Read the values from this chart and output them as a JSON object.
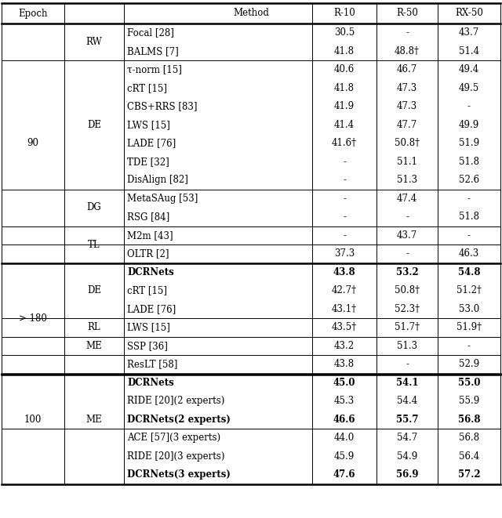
{
  "rows": [
    {
      "epoch": "",
      "group": "",
      "method": "Focal [28]",
      "r10": "30.5",
      "r50": "-",
      "rx50": "43.7",
      "bold": false,
      "tau": false
    },
    {
      "epoch": "",
      "group": "RW",
      "method": "BALMS [7]",
      "r10": "41.8",
      "r50": "48.8†",
      "rx50": "51.4",
      "bold": false,
      "tau": false
    },
    {
      "epoch": "",
      "group": "",
      "method": "τ-norm [15]",
      "r10": "40.6",
      "r50": "46.7",
      "rx50": "49.4",
      "bold": false,
      "tau": true
    },
    {
      "epoch": "",
      "group": "",
      "method": "cRT [15]",
      "r10": "41.8",
      "r50": "47.3",
      "rx50": "49.5",
      "bold": false,
      "tau": false
    },
    {
      "epoch": "",
      "group": "",
      "method": "CBS+RRS [83]",
      "r10": "41.9",
      "r50": "47.3",
      "rx50": "-",
      "bold": false,
      "tau": false
    },
    {
      "epoch": "90",
      "group": "DE",
      "method": "LWS [15]",
      "r10": "41.4",
      "r50": "47.7",
      "rx50": "49.9",
      "bold": false,
      "tau": false
    },
    {
      "epoch": "",
      "group": "",
      "method": "LADE [76]",
      "r10": "41.6†",
      "r50": "50.8†",
      "rx50": "51.9",
      "bold": false,
      "tau": false
    },
    {
      "epoch": "",
      "group": "",
      "method": "TDE [32]",
      "r10": "-",
      "r50": "51.1",
      "rx50": "51.8",
      "bold": false,
      "tau": false
    },
    {
      "epoch": "",
      "group": "",
      "method": "DisAlign [82]",
      "r10": "-",
      "r50": "51.3",
      "rx50": "52.6",
      "bold": false,
      "tau": false
    },
    {
      "epoch": "",
      "group": "DG",
      "method": "MetaSAug [53]",
      "r10": "-",
      "r50": "47.4",
      "rx50": "-",
      "bold": false,
      "tau": false
    },
    {
      "epoch": "",
      "group": "",
      "method": "RSG [84]",
      "r10": "-",
      "r50": "-",
      "rx50": "51.8",
      "bold": false,
      "tau": false
    },
    {
      "epoch": "",
      "group": "TL",
      "method": "M2m [43]",
      "r10": "-",
      "r50": "43.7",
      "rx50": "-",
      "bold": false,
      "tau": false
    },
    {
      "epoch": "",
      "group": "",
      "method": "OLTR [2]",
      "r10": "37.3",
      "r50": "-",
      "rx50": "46.3",
      "bold": false,
      "tau": false
    },
    {
      "epoch": "",
      "group": "",
      "method": "DCRNets",
      "r10": "43.8",
      "r50": "53.2",
      "rx50": "54.8",
      "bold": true,
      "tau": false
    },
    {
      "epoch": "",
      "group": "DE",
      "method": "cRT [15]",
      "r10": "42.7†",
      "r50": "50.8†",
      "rx50": "51.2†",
      "bold": false,
      "tau": false
    },
    {
      "epoch": "",
      "group": "",
      "method": "LADE [76]",
      "r10": "43.1†",
      "r50": "52.3†",
      "rx50": "53.0",
      "bold": false,
      "tau": false
    },
    {
      "epoch": "> 180",
      "group": "",
      "method": "LWS [15]",
      "r10": "43.5†",
      "r50": "51.7†",
      "rx50": "51.9†",
      "bold": false,
      "tau": false
    },
    {
      "epoch": "",
      "group": "RL",
      "method": "SSP [36]",
      "r10": "43.2",
      "r50": "51.3",
      "rx50": "-",
      "bold": false,
      "tau": false
    },
    {
      "epoch": "",
      "group": "ME",
      "method": "ResLT [58]",
      "r10": "43.8",
      "r50": "-",
      "rx50": "52.9",
      "bold": false,
      "tau": false
    },
    {
      "epoch": "",
      "group": "",
      "method": "DCRNets",
      "r10": "45.0",
      "r50": "54.1",
      "rx50": "55.0",
      "bold": true,
      "tau": false
    },
    {
      "epoch": "",
      "group": "",
      "method": "RIDE [20](2 experts)",
      "r10": "45.3",
      "r50": "54.4",
      "rx50": "55.9",
      "bold": false,
      "tau": false
    },
    {
      "epoch": "",
      "group": "",
      "method": "DCRNets(2 experts)",
      "r10": "46.6",
      "r50": "55.7",
      "rx50": "56.8",
      "bold": true,
      "tau": false
    },
    {
      "epoch": "100",
      "group": "ME",
      "method": "ACE [57](3 experts)",
      "r10": "44.0",
      "r50": "54.7",
      "rx50": "56.8",
      "bold": false,
      "tau": false
    },
    {
      "epoch": "",
      "group": "",
      "method": "RIDE [20](3 experts)",
      "r10": "45.9",
      "r50": "54.9",
      "rx50": "56.4",
      "bold": false,
      "tau": false
    },
    {
      "epoch": "",
      "group": "",
      "method": "DCRNets(3 experts)",
      "r10": "47.6",
      "r50": "56.9",
      "rx50": "57.2",
      "bold": true,
      "tau": false
    }
  ],
  "epoch_spans": [
    {
      "epoch": "90",
      "start": 0,
      "end": 12
    },
    {
      "epoch": "> 180",
      "start": 13,
      "end": 18
    },
    {
      "epoch": "100",
      "start": 19,
      "end": 23
    }
  ],
  "group_spans": [
    {
      "group": "RW",
      "start": 0,
      "end": 1
    },
    {
      "group": "DE",
      "start": 2,
      "end": 8
    },
    {
      "group": "DG",
      "start": 9,
      "end": 10
    },
    {
      "group": "TL",
      "start": 11,
      "end": 12
    },
    {
      "group": "DE",
      "start": 13,
      "end": 15
    },
    {
      "group": "RL",
      "start": 16,
      "end": 16
    },
    {
      "group": "ME",
      "start": 17,
      "end": 17
    },
    {
      "group": "ME",
      "start": 19,
      "end": 23
    }
  ],
  "thin_separators_after": [
    1,
    8,
    10,
    11,
    15,
    16,
    17,
    21
  ],
  "thick_separators_after": [
    12,
    18
  ],
  "double_thick_after": [
    18
  ],
  "fontsize": 8.5,
  "header": [
    "Epoch",
    "Method",
    "R-10",
    "R-50",
    "RX-50"
  ]
}
